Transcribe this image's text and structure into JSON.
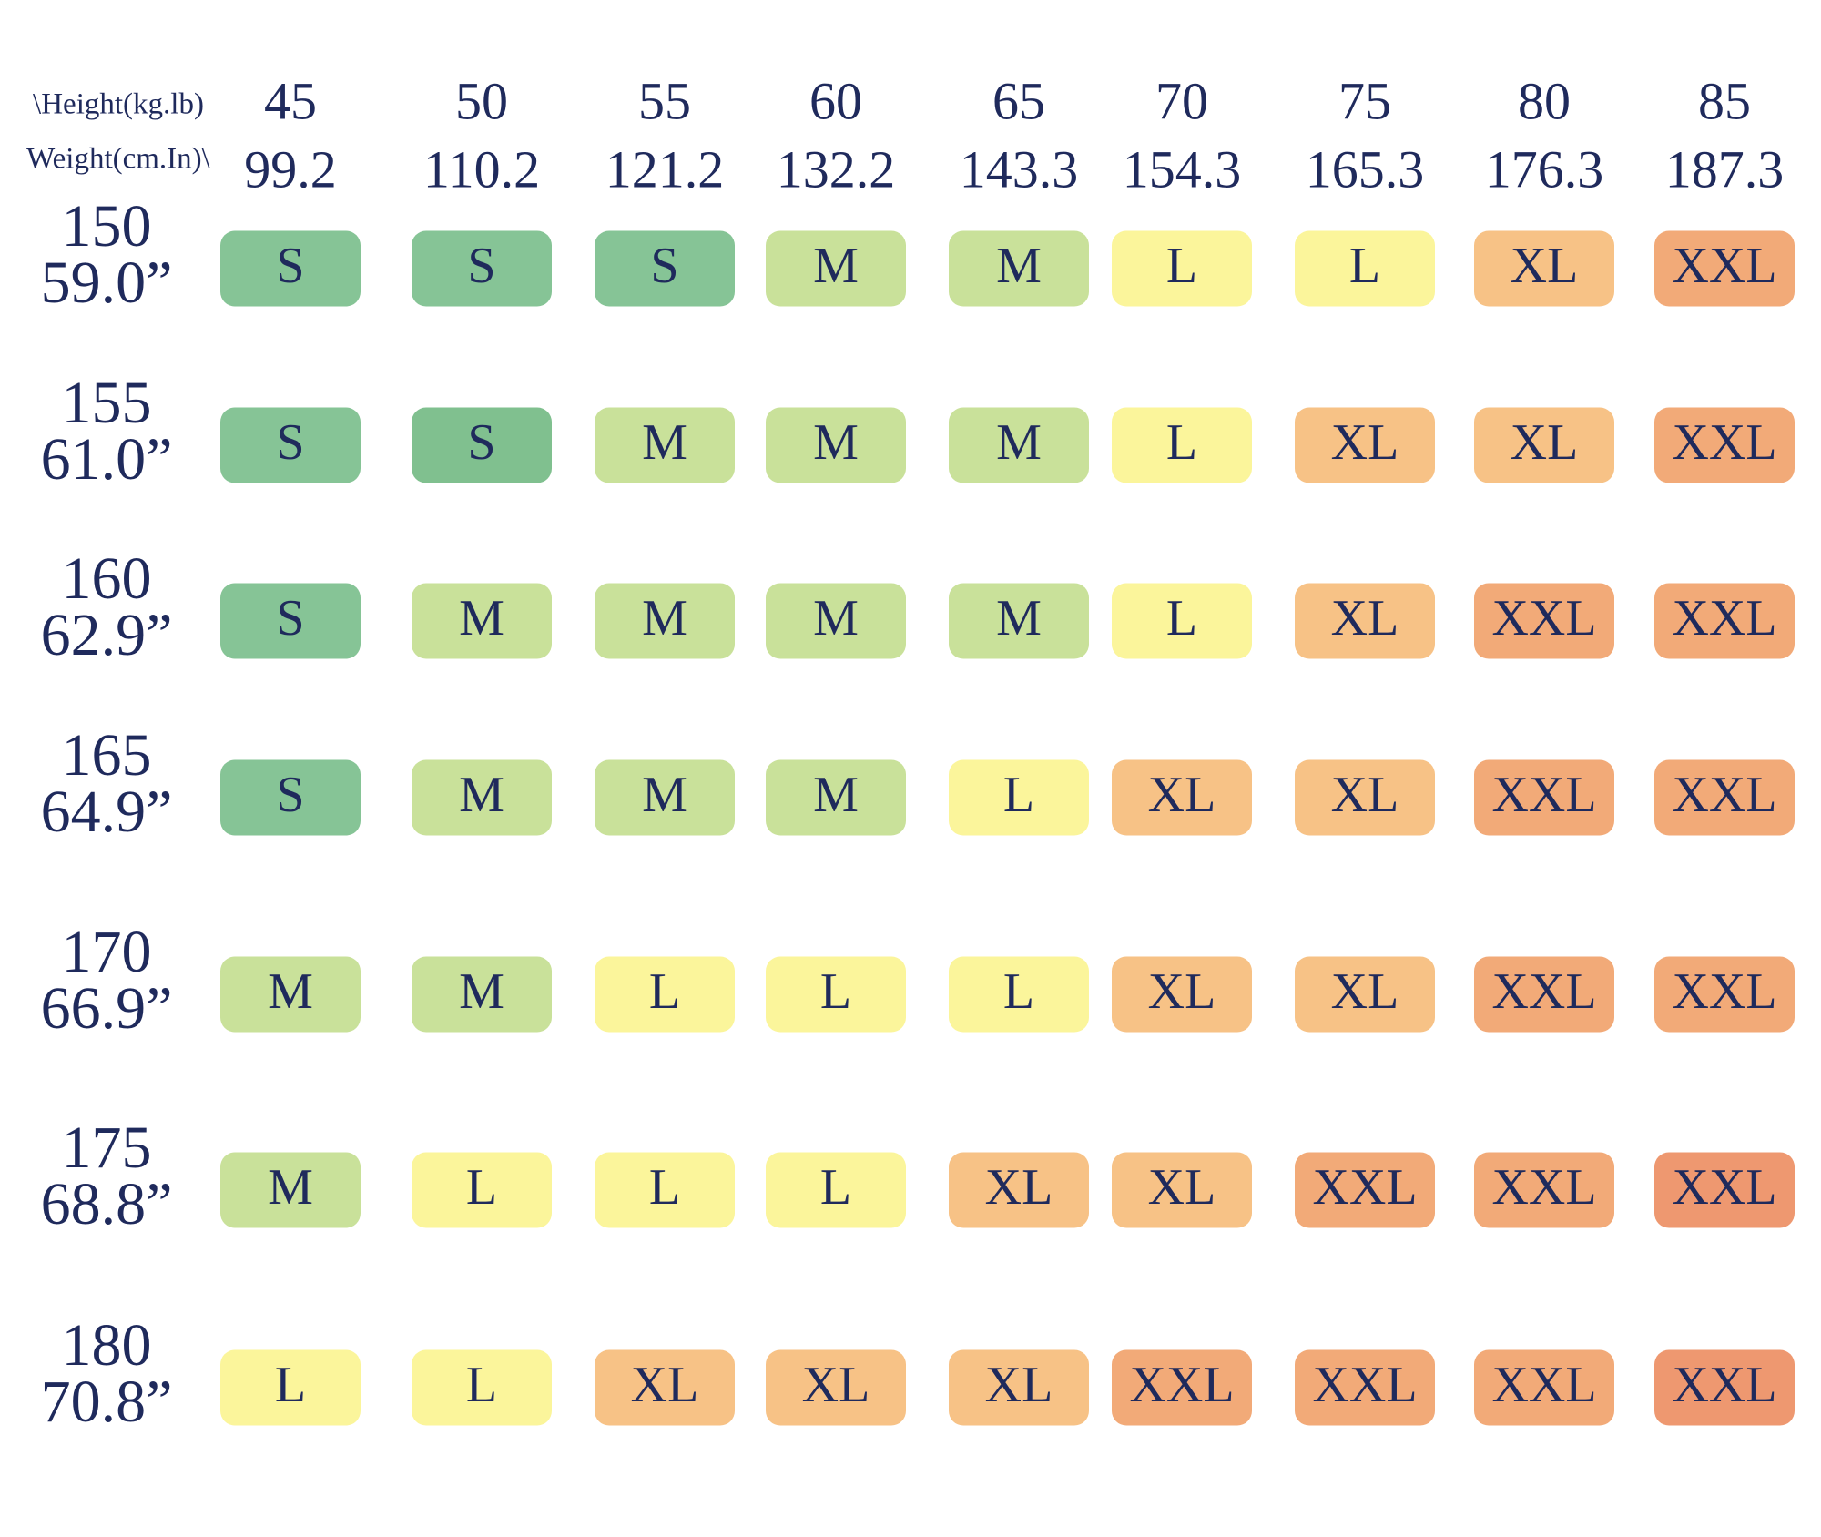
{
  "header": {
    "row_label": "\\Height(kg.lb)",
    "col_label": "Weight(cm.In)\\"
  },
  "columns": [
    {
      "kg": "45",
      "lb": "99.2"
    },
    {
      "kg": "50",
      "lb": "110.2"
    },
    {
      "kg": "55",
      "lb": "121.2"
    },
    {
      "kg": "60",
      "lb": "132.2"
    },
    {
      "kg": "65",
      "lb": "143.3"
    },
    {
      "kg": "70",
      "lb": "154.3"
    },
    {
      "kg": "75",
      "lb": "165.3"
    },
    {
      "kg": "80",
      "lb": "176.3"
    },
    {
      "kg": "85",
      "lb": "187.3"
    }
  ],
  "rows": [
    {
      "cm": "150",
      "in": "59.0”",
      "cells": [
        {
          "size": "S",
          "color": "#86c496"
        },
        {
          "size": "S",
          "color": "#86c496"
        },
        {
          "size": "S",
          "color": "#86c496"
        },
        {
          "size": "M",
          "color": "#c9e19a"
        },
        {
          "size": "M",
          "color": "#c9e19a"
        },
        {
          "size": "L",
          "color": "#fbf59b"
        },
        {
          "size": "L",
          "color": "#fbf59b"
        },
        {
          "size": "XL",
          "color": "#f7c286"
        },
        {
          "size": "XXL",
          "color": "#f2aa78"
        }
      ]
    },
    {
      "cm": "155",
      "in": "61.0”",
      "cells": [
        {
          "size": "S",
          "color": "#86c496"
        },
        {
          "size": "S",
          "color": "#80c08f"
        },
        {
          "size": "M",
          "color": "#c9e19a"
        },
        {
          "size": "M",
          "color": "#c9e19a"
        },
        {
          "size": "M",
          "color": "#c9e19a"
        },
        {
          "size": "L",
          "color": "#fbf59b"
        },
        {
          "size": "XL",
          "color": "#f7c286"
        },
        {
          "size": "XL",
          "color": "#f7c286"
        },
        {
          "size": "XXL",
          "color": "#f2aa78"
        }
      ]
    },
    {
      "cm": "160",
      "in": "62.9”",
      "cells": [
        {
          "size": "S",
          "color": "#86c496"
        },
        {
          "size": "M",
          "color": "#c9e19a"
        },
        {
          "size": "M",
          "color": "#c9e19a"
        },
        {
          "size": "M",
          "color": "#c9e19a"
        },
        {
          "size": "M",
          "color": "#c9e19a"
        },
        {
          "size": "L",
          "color": "#fbf59b"
        },
        {
          "size": "XL",
          "color": "#f7c286"
        },
        {
          "size": "XXL",
          "color": "#f2aa78"
        },
        {
          "size": "XXL",
          "color": "#f2aa78"
        }
      ]
    },
    {
      "cm": "165",
      "in": "64.9”",
      "cells": [
        {
          "size": "S",
          "color": "#86c496"
        },
        {
          "size": "M",
          "color": "#c9e19a"
        },
        {
          "size": "M",
          "color": "#c9e19a"
        },
        {
          "size": "M",
          "color": "#c9e19a"
        },
        {
          "size": "L",
          "color": "#fbf59b"
        },
        {
          "size": "XL",
          "color": "#f7c286"
        },
        {
          "size": "XL",
          "color": "#f7c286"
        },
        {
          "size": "XXL",
          "color": "#f2aa78"
        },
        {
          "size": "XXL",
          "color": "#f2aa78"
        }
      ]
    },
    {
      "cm": "170",
      "in": "66.9”",
      "cells": [
        {
          "size": "M",
          "color": "#c9e19a"
        },
        {
          "size": "M",
          "color": "#c9e19a"
        },
        {
          "size": "L",
          "color": "#fbf59b"
        },
        {
          "size": "L",
          "color": "#fbf59b"
        },
        {
          "size": "L",
          "color": "#fbf59b"
        },
        {
          "size": "XL",
          "color": "#f7c286"
        },
        {
          "size": "XL",
          "color": "#f7c286"
        },
        {
          "size": "XXL",
          "color": "#f2aa78"
        },
        {
          "size": "XXL",
          "color": "#f2aa78"
        }
      ]
    },
    {
      "cm": "175",
      "in": "68.8”",
      "cells": [
        {
          "size": "M",
          "color": "#c9e19a"
        },
        {
          "size": "L",
          "color": "#fbf59b"
        },
        {
          "size": "L",
          "color": "#fbf59b"
        },
        {
          "size": "L",
          "color": "#fbf59b"
        },
        {
          "size": "XL",
          "color": "#f7c286"
        },
        {
          "size": "XL",
          "color": "#f7c286"
        },
        {
          "size": "XXL",
          "color": "#f2aa78"
        },
        {
          "size": "XXL",
          "color": "#f2aa78"
        },
        {
          "size": "XXL",
          "color": "#ee9870"
        }
      ]
    },
    {
      "cm": "180",
      "in": "70.8”",
      "cells": [
        {
          "size": "L",
          "color": "#fbf59b"
        },
        {
          "size": "L",
          "color": "#fbf59b"
        },
        {
          "size": "XL",
          "color": "#f7c286"
        },
        {
          "size": "XL",
          "color": "#f7c286"
        },
        {
          "size": "XL",
          "color": "#f7c286"
        },
        {
          "size": "XXL",
          "color": "#f2aa78"
        },
        {
          "size": "XXL",
          "color": "#f2aa78"
        },
        {
          "size": "XXL",
          "color": "#f2aa78"
        },
        {
          "size": "XXL",
          "color": "#ee9870"
        }
      ]
    }
  ]
}
